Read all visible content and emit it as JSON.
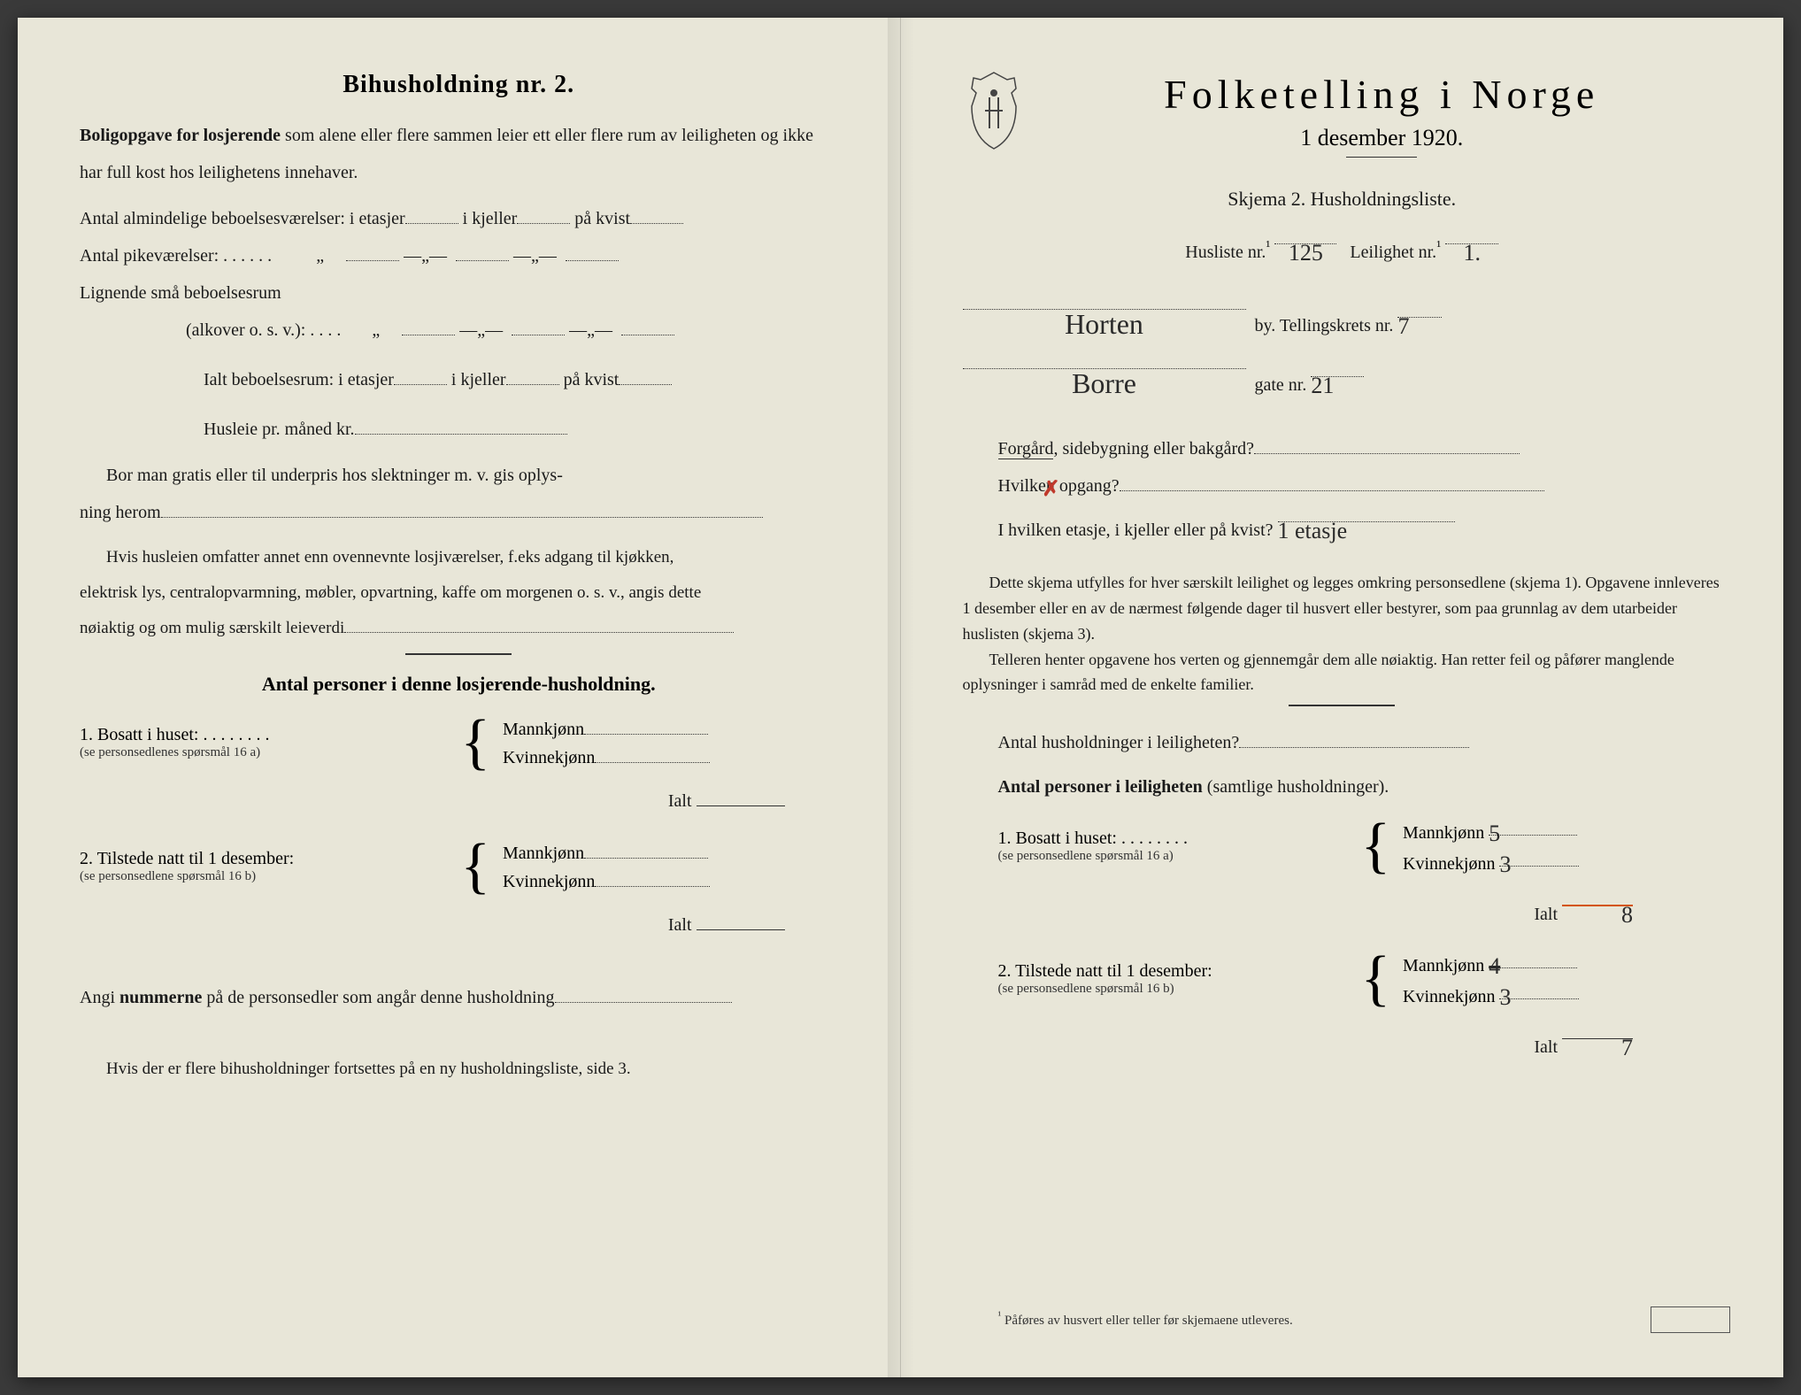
{
  "colors": {
    "paper": "#e8e6d8",
    "ink": "#1a1a1a",
    "red_mark": "#c0392b",
    "orange_underline": "#d35400"
  },
  "left": {
    "title": "Bihusholdning nr. 2.",
    "intro_bold": "Boligopgave for losjerende",
    "intro_rest": " som alene eller flere sammen leier ett eller flere rum av leiligheten og ikke har full kost hos leilighetens innehaver.",
    "line1_a": "Antal almindelige beboelsesværelser: i etasjer",
    "line1_b": "i kjeller",
    "line1_c": "på kvist",
    "line2": "Antal pikeværelser: . . . . . .",
    "line3a": "Lignende små beboelsesrum",
    "line3b": "(alkover o. s. v.):   . . . .",
    "line4_a": "Ialt beboelsesrum: i etasjer",
    "line4_b": "i kjeller",
    "line4_c": "på kvist",
    "rent": "Husleie pr. måned kr.",
    "gratis1": "Bor man gratis eller til underpris hos slektninger m. v. gis oplys-",
    "gratis2": "ning herom",
    "extra1": "Hvis husleien omfatter annet enn ovennevnte losjiværelser, f.eks adgang til kjøkken,",
    "extra2": "elektrisk lys, centralopvarmning, møbler, opvartning, kaffe om morgenen o. s. v., angis dette",
    "extra3": "nøiaktig og om mulig særskilt leieverdi",
    "divider": "———",
    "count_title": "Antal personer i denne losjerende-husholdning.",
    "row1_label": "1.  Bosatt i huset: . . . . . . . .",
    "row1_sub": "(se personsedlenes spørsmål 16 a)",
    "row2_label": "2.  Tilstede natt til 1 desember:",
    "row2_sub": "(se personsedlene spørsmål 16 b)",
    "mann": "Mannkjønn",
    "kvinne": "Kvinnekjønn",
    "ialt": "Ialt",
    "nummer_bold": "nummerne",
    "nummer_line": "Angi ",
    "nummer_line2": " på de personsedler som angår denne husholdning",
    "bottom": "Hvis der er flere bihusholdninger fortsettes på en ny husholdningsliste, side 3."
  },
  "right": {
    "main_title": "Folketelling  i  Norge",
    "date": "1 desember 1920.",
    "skjema": "Skjema 2.  Husholdningsliste.",
    "husliste_label": "Husliste nr.",
    "husliste_val": "125",
    "leilighet_label": "Leilighet nr.",
    "leilighet_val": "1.",
    "by_val": "Horten",
    "by_label": "by.  Tellingskrets nr.",
    "krets_val": "7",
    "gate_val": "Borre",
    "gate_label": "gate nr.",
    "gate_nr": "21",
    "q1": "Forgård, sidebygning eller bakgård?",
    "q2": "Hvilken opgang?",
    "q3": "I hvilken etasje, i kjeller eller på kvist?",
    "q3_val": "1 etasje",
    "para1": "Dette skjema utfylles for hver særskilt leilighet og legges omkring personsedlene (skjema 1). Opgavene innleveres 1 desember eller en av de nærmest følgende dager til husvert eller bestyrer, som paa grunnlag av dem utarbeider huslisten (skjema 3).",
    "para2": "Telleren henter opgavene hos verten og gjennemgår dem alle nøiaktig. Han retter feil og påfører manglende oplysninger i samråd med de enkelte familier.",
    "count_q": "Antal husholdninger i leiligheten?",
    "count_title_bold": "Antal personer i leiligheten",
    "count_title_rest": " (samtlige husholdninger).",
    "row1_label": "1.  Bosatt i huset: . . . . . . . .",
    "row1_sub": "(se personsedlene spørsmål 16 a)",
    "row2_label": "2.  Tilstede natt til 1 desember:",
    "row2_sub": "(se personsedlene spørsmål 16 b)",
    "mann": "Mannkjønn",
    "kvinne": "Kvinnekjønn",
    "ialt": "Ialt",
    "v_mann1": "5",
    "v_kvinne1": "3",
    "v_ialt1": "8",
    "v_mann2": "4",
    "v_kvinne2": "3",
    "v_ialt2": "7",
    "footnote_marker": "¹",
    "footnote": "Påføres av husvert eller teller før skjemaene utleveres."
  }
}
